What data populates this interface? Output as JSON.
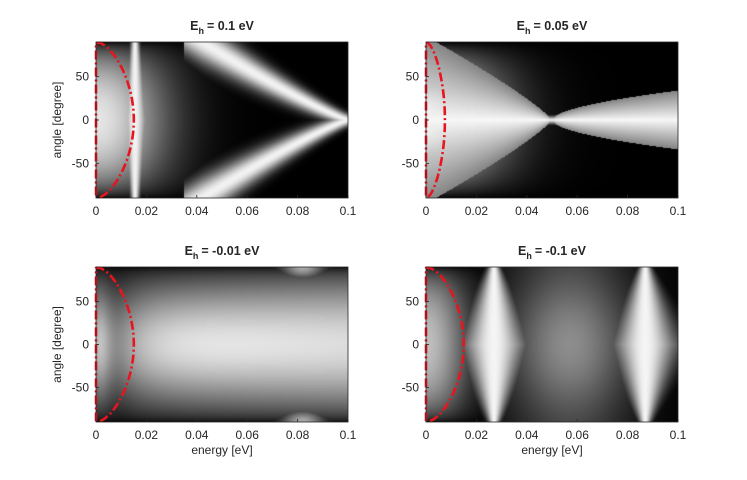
{
  "figure": {
    "background": "#ffffff",
    "overlay_color": "#e8141e",
    "colormap": "gray"
  },
  "chart_data": [
    {
      "type": "heatmap",
      "id": "p1",
      "title": "E",
      "title_sub": "h",
      "title_value": "=  0.1 eV",
      "xlabel": "",
      "ylabel": "angle [degree]",
      "xlim": [
        0,
        0.1
      ],
      "ylim": [
        -90,
        90
      ],
      "xticks": [
        0,
        0.02,
        0.04,
        0.06,
        0.08,
        0.1
      ],
      "xtick_labels": [
        "0",
        "0.02",
        "0.04",
        "0.06",
        "0.08",
        "0.1"
      ],
      "yticks": [
        50,
        0,
        -50
      ],
      "ytick_labels": [
        "50",
        "0",
        "-50"
      ],
      "ridge_energies": [
        0.0155,
        0.042
      ],
      "convergence_energy": 0.1,
      "overlay_curve": {
        "style": "dash-dot",
        "color": "#e8141e",
        "max_energy": 0.015
      }
    },
    {
      "type": "heatmap",
      "id": "p2",
      "title": "E",
      "title_sub": "h",
      "title_value": "=  0.05 eV",
      "xlabel": "",
      "ylabel": "",
      "xlim": [
        0,
        0.1
      ],
      "ylim": [
        -90,
        90
      ],
      "xticks": [
        0,
        0.02,
        0.04,
        0.06,
        0.08,
        0.1
      ],
      "xtick_labels": [
        "0",
        "0.02",
        "0.04",
        "0.06",
        "0.08",
        "0.1"
      ],
      "yticks": [
        50,
        0,
        -50
      ],
      "ytick_labels": [
        "50",
        "0",
        "-50"
      ],
      "crossing_energy": 0.05,
      "overlay_curve": {
        "style": "dash-dot",
        "color": "#e8141e",
        "max_energy": 0.0075
      }
    },
    {
      "type": "heatmap",
      "id": "p3",
      "title": "E",
      "title_sub": "h",
      "title_value": "=  -0.01 eV",
      "xlabel": "energy [eV]",
      "ylabel": "angle [degree]",
      "xlim": [
        0,
        0.1
      ],
      "ylim": [
        -90,
        90
      ],
      "xticks": [
        0,
        0.02,
        0.04,
        0.06,
        0.08,
        0.1
      ],
      "xtick_labels": [
        "0",
        "0.02",
        "0.04",
        "0.06",
        "0.08",
        "0.1"
      ],
      "yticks": [
        50,
        0,
        -50
      ],
      "ytick_labels": [
        "50",
        "0",
        "-50"
      ],
      "peak_energy": 0.082,
      "overlay_curve": {
        "style": "dash-dot",
        "color": "#e8141e",
        "max_energy": 0.015
      }
    },
    {
      "type": "heatmap",
      "id": "p4",
      "title": "E",
      "title_sub": "h",
      "title_value": "=  -0.1 eV",
      "xlabel": "energy [eV]",
      "ylabel": "",
      "xlim": [
        0,
        0.1
      ],
      "ylim": [
        -90,
        90
      ],
      "xticks": [
        0,
        0.02,
        0.04,
        0.06,
        0.08,
        0.1
      ],
      "xtick_labels": [
        "0",
        "0.02",
        "0.04",
        "0.06",
        "0.08",
        "0.1"
      ],
      "yticks": [
        50,
        0,
        -50
      ],
      "ytick_labels": [
        "50",
        "0",
        "-50"
      ],
      "ridge_energies": [
        0.027,
        0.087
      ],
      "overlay_curve": {
        "style": "dash-dot",
        "color": "#e8141e",
        "max_energy": 0.015
      }
    }
  ]
}
